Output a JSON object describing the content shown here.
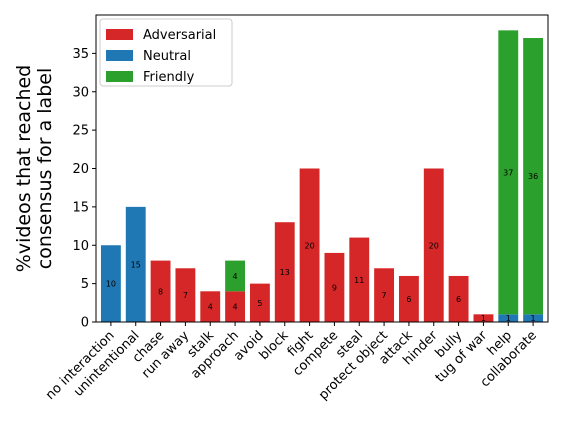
{
  "chart_data": {
    "type": "bar",
    "stacked": true,
    "ylabel_lines": [
      "%videos that reached",
      "consensus for a label"
    ],
    "ylim": [
      0,
      40
    ],
    "yticks": [
      0,
      5,
      10,
      15,
      20,
      25,
      30,
      35
    ],
    "legend_position": "top-left",
    "grid": false,
    "categories": [
      "no interaction",
      "unintentional",
      "chase",
      "run away",
      "stalk",
      "approach",
      "avoid",
      "block",
      "fight",
      "compete",
      "steal",
      "protect object",
      "attack",
      "hinder",
      "bully",
      "tug of war",
      "help",
      "collaborate"
    ],
    "series": [
      {
        "name": "Adversarial",
        "color": "#d62728",
        "values": [
          0,
          0,
          8,
          7,
          4,
          4,
          5,
          13,
          20,
          9,
          11,
          7,
          6,
          20,
          6,
          1,
          0,
          0
        ],
        "labels": [
          "",
          "",
          "8",
          "7",
          "4",
          "4",
          "5",
          "13",
          "20",
          "9",
          "11",
          "7",
          "6",
          "20",
          "6",
          "1",
          "",
          ""
        ]
      },
      {
        "name": "Neutral",
        "color": "#1f77b4",
        "values": [
          10,
          15,
          0,
          0,
          0,
          0,
          0,
          0,
          0,
          0,
          0,
          0,
          0,
          0,
          0,
          0,
          1,
          1
        ],
        "labels": [
          "10",
          "15",
          "",
          "",
          "",
          "",
          "",
          "",
          "",
          "",
          "",
          "",
          "",
          "",
          "",
          "",
          "1",
          "1"
        ]
      },
      {
        "name": "Friendly",
        "color": "#2ca02c",
        "values": [
          0,
          0,
          0,
          0,
          0,
          4,
          0,
          0,
          0,
          0,
          0,
          0,
          0,
          0,
          0,
          0,
          37,
          36
        ],
        "labels": [
          "",
          "",
          "",
          "",
          "",
          "4",
          "",
          "",
          "",
          "",
          "",
          "",
          "",
          "",
          "",
          "",
          "37",
          "36"
        ]
      }
    ]
  }
}
